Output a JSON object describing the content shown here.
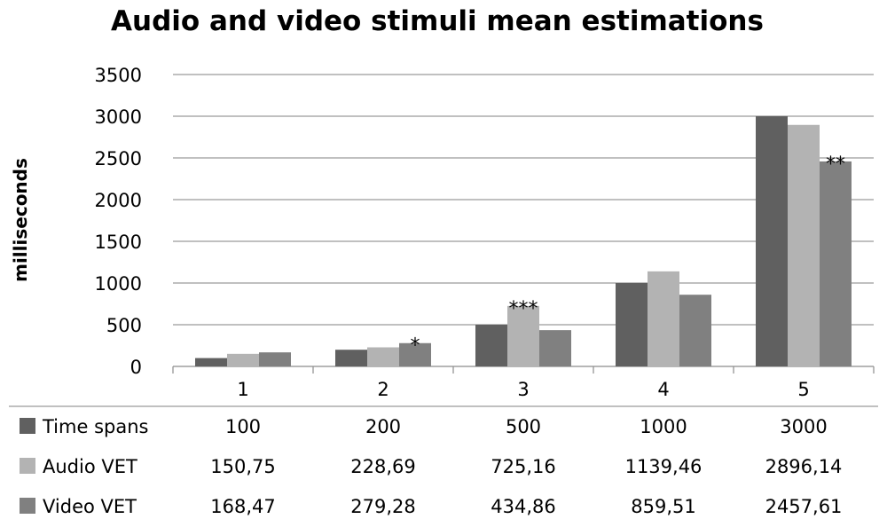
{
  "chart_data": {
    "type": "bar",
    "title": "Audio and video stimuli mean estimations",
    "xlabel": "",
    "ylabel": "milliseconds",
    "ylim": [
      0,
      3500
    ],
    "yticks": [
      0,
      500,
      1000,
      1500,
      2000,
      2500,
      3000,
      3500
    ],
    "grid": true,
    "legend": "bottom-left data table",
    "categories": [
      "1",
      "2",
      "3",
      "4",
      "5"
    ],
    "series": [
      {
        "name": "Time spans",
        "color": "#606060",
        "values": [
          100,
          200,
          500,
          1000,
          3000
        ],
        "labels": [
          "100",
          "200",
          "500",
          "1000",
          "3000"
        ]
      },
      {
        "name": "Audio VET",
        "color": "#b3b3b3",
        "values": [
          150.75,
          228.69,
          725.16,
          1139.46,
          2896.14
        ],
        "labels": [
          "150,75",
          "228,69",
          "725,16",
          "1139,46",
          "2896,14"
        ]
      },
      {
        "name": "Video VET",
        "color": "#808080",
        "values": [
          168.47,
          279.28,
          434.86,
          859.51,
          2457.61
        ],
        "labels": [
          "168,47",
          "279,28",
          "434,86",
          "859,51",
          "2457,61"
        ]
      }
    ],
    "annotations": [
      {
        "category": "2",
        "series": "Video VET",
        "text": "*"
      },
      {
        "category": "3",
        "series": "Audio VET",
        "text": "***"
      },
      {
        "category": "5",
        "series": "Video VET",
        "text": "**"
      }
    ]
  }
}
